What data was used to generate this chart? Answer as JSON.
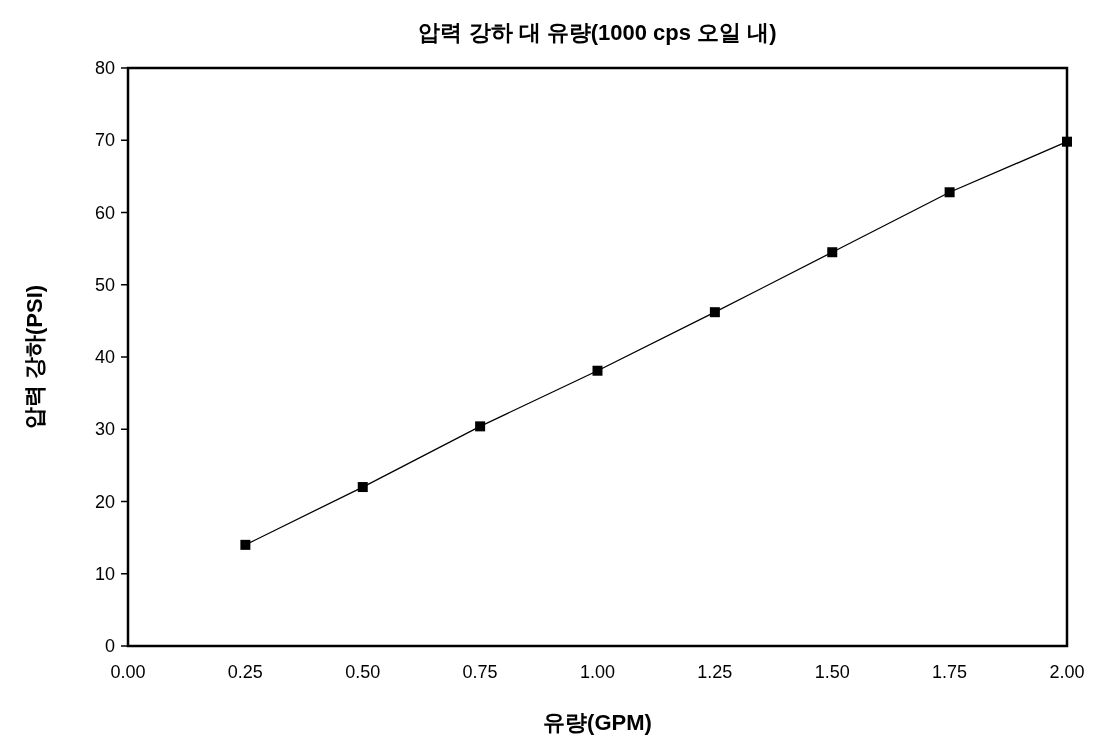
{
  "chart_data": {
    "type": "line",
    "title": "압력 강하 대 유량(1000 cps 오일 내)",
    "xlabel": "유량(GPM)",
    "ylabel": "압력 강하(PSI)",
    "x": [
      0.25,
      0.5,
      0.75,
      1.0,
      1.25,
      1.5,
      1.75,
      2.0
    ],
    "series": [
      {
        "color": "#000000",
        "values": [
          14.0,
          22.0,
          30.4,
          38.1,
          46.2,
          54.5,
          62.8,
          69.8
        ]
      }
    ],
    "marker": "square",
    "line_style": "solid",
    "xlim": [
      0,
      2
    ],
    "ylim": [
      0,
      80
    ],
    "xticks": [
      {
        "value": 0,
        "label": "0.00"
      },
      {
        "value": 0.25,
        "label": "0.25"
      },
      {
        "value": 0.5,
        "label": "0.50"
      },
      {
        "value": 0.75,
        "label": "0.75"
      },
      {
        "value": 1.0,
        "label": "1.00"
      },
      {
        "value": 1.25,
        "label": "1.25"
      },
      {
        "value": 1.5,
        "label": "1.50"
      },
      {
        "value": 1.75,
        "label": "1.75"
      },
      {
        "value": 2.0,
        "label": "2.00"
      }
    ],
    "yticks": [
      0,
      10,
      20,
      30,
      40,
      50,
      60,
      70,
      80
    ]
  }
}
